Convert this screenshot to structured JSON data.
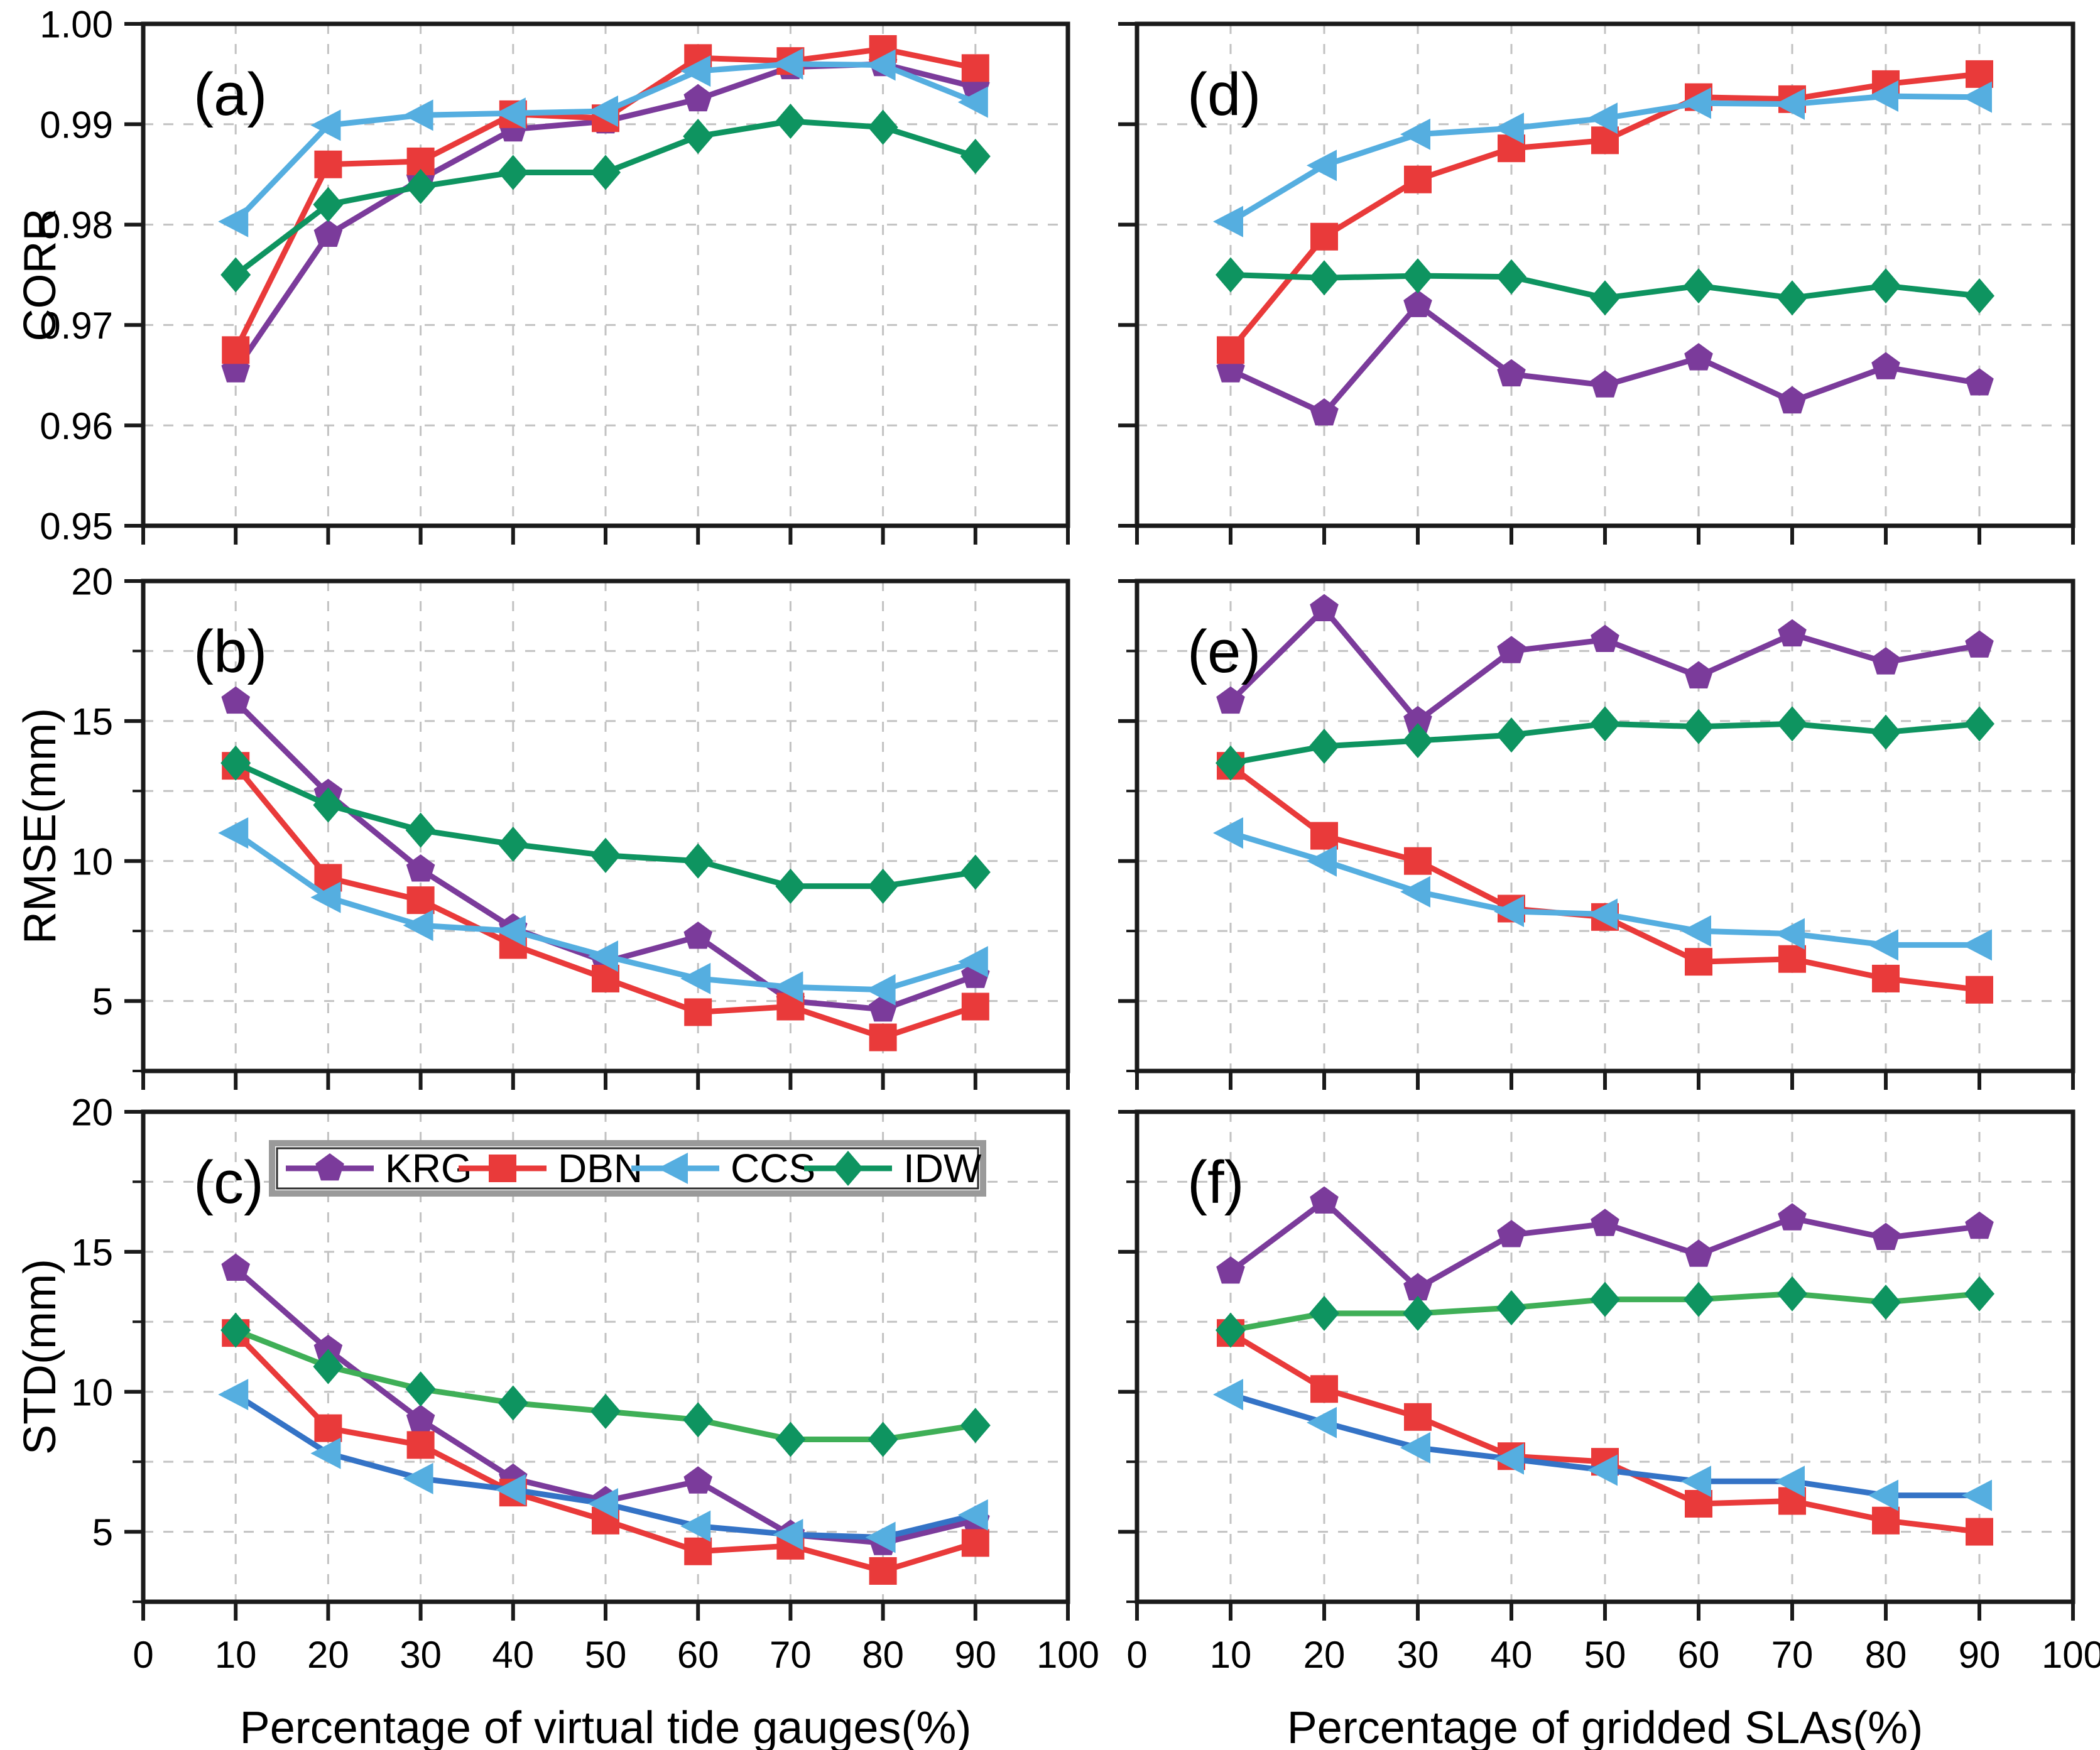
{
  "figure": {
    "background": "#ffffff",
    "frame_color": "#1a1a1a",
    "grid_color": "#c2c2c2",
    "text_color": "#000000",
    "legend": {
      "items": [
        "KRG",
        "DBN",
        "CCS",
        "IDW"
      ]
    },
    "series_styles": {
      "KRG": {
        "color": "#7B3B9B",
        "marker": "pentagon"
      },
      "DBN": {
        "color": "#E93A3A",
        "marker": "square"
      },
      "CCS": {
        "color": "#55AEE0",
        "marker": "triangle-left",
        "alt_line_color": "#3473C6"
      },
      "IDW": {
        "color": "#0E9460",
        "marker": "diamond",
        "alt_line_color": "#3FAF57"
      }
    },
    "x_axis": {
      "tick_values": [
        0,
        10,
        20,
        30,
        40,
        50,
        60,
        70,
        80,
        90,
        100
      ],
      "tick_labels": [
        "0",
        "10",
        "20",
        "30",
        "40",
        "50",
        "60",
        "70",
        "80",
        "90",
        "100"
      ]
    }
  },
  "chart_data": [
    {
      "id": "a",
      "label": "(a)",
      "type": "line",
      "row": 0,
      "col": 0,
      "ylabel": "CORR",
      "xlabel": "",
      "xlim": [
        0,
        100
      ],
      "ylim": [
        0.95,
        1.0
      ],
      "x": [
        10,
        20,
        30,
        40,
        50,
        60,
        70,
        80,
        90
      ],
      "yticks": [
        {
          "v": 0.95,
          "label": "0.95"
        },
        {
          "v": 0.96,
          "label": "0.96"
        },
        {
          "v": 0.97,
          "label": "0.97"
        },
        {
          "v": 0.98,
          "label": "0.98"
        },
        {
          "v": 0.99,
          "label": "0.99"
        },
        {
          "v": 1.0,
          "label": "1.00"
        }
      ],
      "yminor": [],
      "ygrid": [
        0.96,
        0.97,
        0.98,
        0.99
      ],
      "show_ytick_labels": true,
      "show_xtick_labels": false,
      "alt_line": false,
      "legend": false,
      "series": [
        {
          "name": "KRG",
          "values": [
            0.9655,
            0.979,
            0.9845,
            0.9895,
            0.9903,
            0.9925,
            0.9957,
            0.996,
            0.9937
          ]
        },
        {
          "name": "DBN",
          "values": [
            0.9675,
            0.986,
            0.9863,
            0.991,
            0.9906,
            0.9966,
            0.9963,
            0.9975,
            0.9956
          ]
        },
        {
          "name": "CCS",
          "values": [
            0.9803,
            0.9899,
            0.9909,
            0.9911,
            0.9913,
            0.9953,
            0.996,
            0.9959,
            0.9922
          ]
        },
        {
          "name": "IDW",
          "values": [
            0.975,
            0.982,
            0.9838,
            0.9852,
            0.9852,
            0.9888,
            0.9903,
            0.9897,
            0.9868
          ]
        }
      ]
    },
    {
      "id": "d",
      "label": "(d)",
      "type": "line",
      "row": 0,
      "col": 1,
      "ylabel": "",
      "xlabel": "",
      "xlim": [
        0,
        100
      ],
      "ylim": [
        0.95,
        1.0
      ],
      "x": [
        10,
        20,
        30,
        40,
        50,
        60,
        70,
        80,
        90
      ],
      "yticks": [
        {
          "v": 0.95,
          "label": "0.95"
        },
        {
          "v": 0.96,
          "label": "0.96"
        },
        {
          "v": 0.97,
          "label": "0.97"
        },
        {
          "v": 0.98,
          "label": "0.98"
        },
        {
          "v": 0.99,
          "label": "0.99"
        },
        {
          "v": 1.0,
          "label": "1.00"
        }
      ],
      "yminor": [],
      "ygrid": [
        0.96,
        0.97,
        0.98,
        0.99
      ],
      "show_ytick_labels": false,
      "show_xtick_labels": false,
      "alt_line": false,
      "legend": false,
      "series": [
        {
          "name": "KRG",
          "values": [
            0.9655,
            0.9612,
            0.972,
            0.9651,
            0.964,
            0.9667,
            0.9624,
            0.9658,
            0.9642
          ]
        },
        {
          "name": "DBN",
          "values": [
            0.9675,
            0.9788,
            0.9845,
            0.9876,
            0.9884,
            0.9927,
            0.9925,
            0.994,
            0.995
          ]
        },
        {
          "name": "CCS",
          "values": [
            0.9803,
            0.9859,
            0.989,
            0.9896,
            0.9906,
            0.9921,
            0.992,
            0.9928,
            0.9927
          ]
        },
        {
          "name": "IDW",
          "values": [
            0.975,
            0.9747,
            0.9749,
            0.9748,
            0.9727,
            0.9739,
            0.9727,
            0.9739,
            0.9729
          ]
        }
      ]
    },
    {
      "id": "b",
      "label": "(b)",
      "type": "line",
      "row": 1,
      "col": 0,
      "ylabel": "RMSE(mm)",
      "xlabel": "",
      "xlim": [
        0,
        100
      ],
      "ylim": [
        2.5,
        20
      ],
      "x": [
        10,
        20,
        30,
        40,
        50,
        60,
        70,
        80,
        90
      ],
      "yticks": [
        {
          "v": 5,
          "label": "5"
        },
        {
          "v": 10,
          "label": "10"
        },
        {
          "v": 15,
          "label": "15"
        },
        {
          "v": 20,
          "label": "20"
        }
      ],
      "yminor": [
        2.5,
        7.5,
        12.5,
        17.5
      ],
      "ygrid": [
        5,
        7.5,
        10,
        12.5,
        15,
        17.5
      ],
      "show_ytick_labels": true,
      "show_xtick_labels": false,
      "alt_line": false,
      "legend": false,
      "series": [
        {
          "name": "KRG",
          "values": [
            15.7,
            12.4,
            9.7,
            7.6,
            6.4,
            7.3,
            5.0,
            4.7,
            5.9
          ]
        },
        {
          "name": "DBN",
          "values": [
            13.4,
            9.4,
            8.6,
            7.0,
            5.8,
            4.6,
            4.8,
            3.7,
            4.8
          ]
        },
        {
          "name": "CCS",
          "values": [
            11.0,
            8.7,
            7.7,
            7.5,
            6.6,
            5.8,
            5.5,
            5.4,
            6.4
          ]
        },
        {
          "name": "IDW",
          "values": [
            13.5,
            12.0,
            11.1,
            10.6,
            10.2,
            10.0,
            9.1,
            9.1,
            9.6
          ]
        }
      ]
    },
    {
      "id": "e",
      "label": "(e)",
      "type": "line",
      "row": 1,
      "col": 1,
      "ylabel": "",
      "xlabel": "",
      "xlim": [
        0,
        100
      ],
      "ylim": [
        2.5,
        20
      ],
      "x": [
        10,
        20,
        30,
        40,
        50,
        60,
        70,
        80,
        90
      ],
      "yticks": [
        {
          "v": 5,
          "label": "5"
        },
        {
          "v": 10,
          "label": "10"
        },
        {
          "v": 15,
          "label": "15"
        },
        {
          "v": 20,
          "label": "20"
        }
      ],
      "yminor": [
        2.5,
        7.5,
        12.5,
        17.5
      ],
      "ygrid": [
        5,
        7.5,
        10,
        12.5,
        15,
        17.5
      ],
      "show_ytick_labels": false,
      "show_xtick_labels": false,
      "alt_line": false,
      "legend": false,
      "series": [
        {
          "name": "KRG",
          "values": [
            15.7,
            19.0,
            15.0,
            17.5,
            17.9,
            16.6,
            18.1,
            17.1,
            17.7
          ]
        },
        {
          "name": "DBN",
          "values": [
            13.4,
            10.9,
            10.0,
            8.3,
            8.0,
            6.4,
            6.5,
            5.8,
            5.4
          ]
        },
        {
          "name": "CCS",
          "values": [
            11.0,
            10.0,
            8.9,
            8.2,
            8.1,
            7.5,
            7.4,
            7.0,
            7.0
          ]
        },
        {
          "name": "IDW",
          "values": [
            13.5,
            14.1,
            14.3,
            14.5,
            14.9,
            14.8,
            14.9,
            14.6,
            14.9
          ]
        }
      ]
    },
    {
      "id": "c",
      "label": "(c)",
      "type": "line",
      "row": 2,
      "col": 0,
      "ylabel": "STD(mm)",
      "xlabel": "Percentage of virtual tide gauges(%)",
      "xlim": [
        0,
        100
      ],
      "ylim": [
        2.5,
        20
      ],
      "x": [
        10,
        20,
        30,
        40,
        50,
        60,
        70,
        80,
        90
      ],
      "yticks": [
        {
          "v": 5,
          "label": "5"
        },
        {
          "v": 10,
          "label": "10"
        },
        {
          "v": 15,
          "label": "15"
        },
        {
          "v": 20,
          "label": "20"
        }
      ],
      "yminor": [
        2.5,
        7.5,
        12.5,
        17.5
      ],
      "ygrid": [
        5,
        7.5,
        10,
        12.5,
        15,
        17.5
      ],
      "show_ytick_labels": true,
      "show_xtick_labels": true,
      "alt_line": true,
      "legend": true,
      "series": [
        {
          "name": "KRG",
          "values": [
            14.4,
            11.5,
            9.0,
            6.9,
            6.1,
            6.8,
            4.9,
            4.6,
            5.4
          ]
        },
        {
          "name": "DBN",
          "values": [
            12.1,
            8.7,
            8.1,
            6.4,
            5.4,
            4.3,
            4.5,
            3.6,
            4.6
          ]
        },
        {
          "name": "CCS",
          "values": [
            9.9,
            7.8,
            6.9,
            6.5,
            6.0,
            5.2,
            4.9,
            4.8,
            5.6
          ]
        },
        {
          "name": "IDW",
          "values": [
            12.2,
            10.9,
            10.1,
            9.6,
            9.3,
            9.0,
            8.3,
            8.3,
            8.8
          ]
        }
      ]
    },
    {
      "id": "f",
      "label": "(f)",
      "type": "line",
      "row": 2,
      "col": 1,
      "ylabel": "",
      "xlabel": "Percentage of gridded SLAs(%)",
      "xlim": [
        0,
        100
      ],
      "ylim": [
        2.5,
        20
      ],
      "x": [
        10,
        20,
        30,
        40,
        50,
        60,
        70,
        80,
        90
      ],
      "yticks": [
        {
          "v": 5,
          "label": "5"
        },
        {
          "v": 10,
          "label": "10"
        },
        {
          "v": 15,
          "label": "15"
        },
        {
          "v": 20,
          "label": "20"
        }
      ],
      "yminor": [
        2.5,
        7.5,
        12.5,
        17.5
      ],
      "ygrid": [
        5,
        7.5,
        10,
        12.5,
        15,
        17.5
      ],
      "show_ytick_labels": false,
      "show_xtick_labels": true,
      "alt_line": true,
      "legend": false,
      "series": [
        {
          "name": "KRG",
          "values": [
            14.3,
            16.8,
            13.7,
            15.6,
            16.0,
            14.9,
            16.2,
            15.5,
            15.9
          ]
        },
        {
          "name": "DBN",
          "values": [
            12.1,
            10.1,
            9.1,
            7.7,
            7.5,
            6.0,
            6.1,
            5.4,
            5.0
          ]
        },
        {
          "name": "CCS",
          "values": [
            9.9,
            8.9,
            8.0,
            7.6,
            7.2,
            6.8,
            6.8,
            6.3,
            6.3
          ]
        },
        {
          "name": "IDW",
          "values": [
            12.2,
            12.8,
            12.8,
            13.0,
            13.3,
            13.3,
            13.5,
            13.2,
            13.5
          ]
        }
      ]
    }
  ]
}
